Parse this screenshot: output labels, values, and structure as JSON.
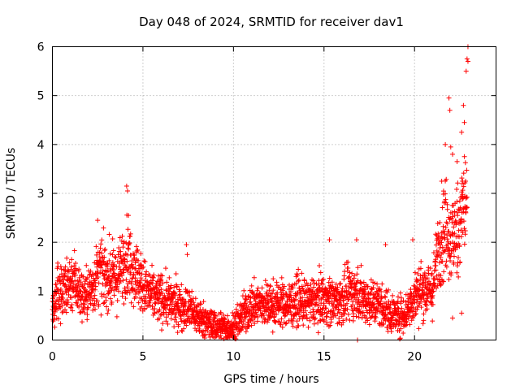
{
  "chart_data": {
    "type": "scatter",
    "marker": "+",
    "marker_color": "#ff0000",
    "title": "Day 048 of 2024, SRMTID for receiver dav1",
    "xlabel": "GPS time / hours",
    "ylabel": "SRMTID / TECUs",
    "xlim": [
      0,
      24.5
    ],
    "ylim": [
      0,
      6
    ],
    "xticks": [
      0,
      5,
      10,
      15,
      20
    ],
    "yticks": [
      0,
      1,
      2,
      3,
      4,
      5,
      6
    ],
    "grid": true,
    "trend": [
      [
        0.0,
        0.6
      ],
      [
        0.3,
        1.0
      ],
      [
        0.8,
        1.1
      ],
      [
        1.2,
        1.25
      ],
      [
        1.6,
        0.9
      ],
      [
        2.0,
        0.95
      ],
      [
        2.6,
        1.4
      ],
      [
        3.0,
        1.3
      ],
      [
        3.6,
        1.25
      ],
      [
        4.0,
        1.7
      ],
      [
        4.5,
        1.5
      ],
      [
        5.0,
        1.1
      ],
      [
        5.5,
        0.9
      ],
      [
        6.0,
        0.85
      ],
      [
        6.5,
        0.75
      ],
      [
        7.0,
        0.7
      ],
      [
        7.5,
        0.65
      ],
      [
        8.0,
        0.5
      ],
      [
        8.5,
        0.35
      ],
      [
        9.0,
        0.3
      ],
      [
        9.5,
        0.25
      ],
      [
        10.0,
        0.25
      ],
      [
        10.5,
        0.5
      ],
      [
        11.0,
        0.7
      ],
      [
        11.5,
        0.75
      ],
      [
        12.0,
        0.7
      ],
      [
        12.5,
        0.75
      ],
      [
        13.0,
        0.7
      ],
      [
        13.5,
        0.8
      ],
      [
        14.0,
        0.75
      ],
      [
        14.5,
        0.8
      ],
      [
        15.0,
        0.85
      ],
      [
        15.5,
        0.8
      ],
      [
        16.0,
        0.8
      ],
      [
        16.5,
        1.0
      ],
      [
        17.0,
        0.9
      ],
      [
        17.5,
        0.8
      ],
      [
        18.0,
        0.75
      ],
      [
        18.5,
        0.6
      ],
      [
        19.0,
        0.5
      ],
      [
        19.5,
        0.55
      ],
      [
        20.0,
        0.9
      ],
      [
        20.5,
        1.05
      ],
      [
        21.0,
        1.0
      ],
      [
        21.3,
        1.8
      ],
      [
        21.7,
        2.4
      ],
      [
        22.0,
        2.0
      ],
      [
        22.4,
        2.3
      ],
      [
        22.8,
        2.9
      ],
      [
        22.9,
        3.0
      ]
    ],
    "spikes": [
      [
        2.5,
        2.45
      ],
      [
        4.1,
        3.15
      ],
      [
        4.15,
        3.05
      ],
      [
        4.2,
        2.55
      ],
      [
        7.4,
        1.95
      ],
      [
        7.45,
        1.75
      ],
      [
        15.3,
        2.05
      ],
      [
        16.8,
        2.05
      ],
      [
        18.4,
        1.95
      ],
      [
        19.9,
        2.05
      ],
      [
        21.5,
        3.25
      ],
      [
        21.7,
        4.0
      ],
      [
        21.9,
        4.95
      ],
      [
        21.95,
        4.7
      ],
      [
        22.0,
        3.95
      ],
      [
        22.1,
        3.8
      ],
      [
        22.35,
        3.65
      ],
      [
        22.6,
        4.25
      ],
      [
        22.65,
        3.25
      ],
      [
        22.7,
        4.8
      ],
      [
        22.75,
        4.45
      ],
      [
        22.85,
        5.5
      ],
      [
        22.9,
        5.75
      ],
      [
        22.95,
        5.7
      ],
      [
        22.95,
        6.0
      ],
      [
        22.1,
        0.45
      ],
      [
        22.6,
        0.55
      ],
      [
        16.85,
        0.0
      ],
      [
        9.7,
        0.05
      ]
    ],
    "samples_per_hour": 120,
    "scatter_scale": 0.45
  }
}
